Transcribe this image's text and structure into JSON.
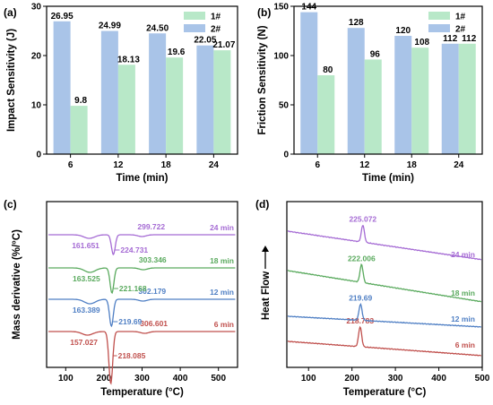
{
  "colors": {
    "series_1": "#b8e8c8",
    "series_2": "#a9c4e8"
  },
  "chart_data": [
    {
      "panel_label": "(a)",
      "type": "bar",
      "xlabel": "Time (min)",
      "ylabel": "Impact Sensitivity (J)",
      "ylim": [
        0,
        30
      ],
      "yticks": [
        0,
        10,
        20,
        30
      ],
      "categories": [
        "6",
        "12",
        "18",
        "24"
      ],
      "series": [
        {
          "name": "1#",
          "values": [
            9.8,
            18.13,
            19.6,
            21.07
          ],
          "labels": [
            "9.8",
            "18.13",
            "19.6",
            "21.07"
          ],
          "color": "#b8e8c8"
        },
        {
          "name": "2#",
          "values": [
            26.95,
            24.99,
            24.5,
            22.05
          ],
          "labels": [
            "26.95",
            "24.99",
            "24.50",
            "22.05"
          ],
          "color": "#a9c4e8"
        }
      ],
      "legend": "top-right"
    },
    {
      "panel_label": "(b)",
      "type": "bar",
      "xlabel": "Time (min)",
      "ylabel": "Friction Sensitivity (N)",
      "ylim": [
        0,
        150
      ],
      "yticks": [
        0,
        50,
        100,
        150
      ],
      "categories": [
        "6",
        "12",
        "18",
        "24"
      ],
      "series": [
        {
          "name": "1#",
          "values": [
            80,
            96,
            108,
            112
          ],
          "labels": [
            "80",
            "96",
            "108",
            "112"
          ],
          "color": "#b8e8c8"
        },
        {
          "name": "2#",
          "values": [
            144,
            128,
            120,
            112
          ],
          "labels": [
            "144",
            "128",
            "120",
            "112"
          ],
          "color": "#a9c4e8"
        }
      ],
      "legend": "top-right"
    },
    {
      "panel_label": "(c)",
      "type": "line",
      "xlabel": "Temperature (°C)",
      "ylabel": "Mass derivative (%/°C)",
      "xlim": [
        50,
        550
      ],
      "xticks": [
        100,
        200,
        300,
        400,
        500
      ],
      "series": [
        {
          "name": "6 min",
          "color": "#c0504d",
          "annotations": [
            {
              "text": "157.027",
              "x": 157.027
            },
            {
              "text": "218.085",
              "x": 218.085
            },
            {
              "text": "306.601",
              "x": 306.601
            }
          ]
        },
        {
          "name": "12 min",
          "color": "#4f7fc4",
          "annotations": [
            {
              "text": "163.389",
              "x": 163.389
            },
            {
              "text": "219.69",
              "x": 219.69
            },
            {
              "text": "302.179",
              "x": 302.179
            }
          ]
        },
        {
          "name": "18 min",
          "color": "#5aaa5e",
          "annotations": [
            {
              "text": "163.525",
              "x": 163.525
            },
            {
              "text": "221.168",
              "x": 221.168
            },
            {
              "text": "303.346",
              "x": 303.346
            }
          ]
        },
        {
          "name": "24 min",
          "color": "#a56bd4",
          "annotations": [
            {
              "text": "161.651",
              "x": 161.651
            },
            {
              "text": "224.731",
              "x": 224.731
            },
            {
              "text": "299.722",
              "x": 299.722
            }
          ]
        }
      ]
    },
    {
      "panel_label": "(d)",
      "type": "line",
      "xlabel": "Temperature (°C)",
      "ylabel": "Heat Flow",
      "xlim": [
        50,
        500
      ],
      "xticks": [
        100,
        200,
        300,
        400,
        500
      ],
      "series": [
        {
          "name": "6 min",
          "color": "#c0504d",
          "peak_label": "218.783",
          "peak_x": 218.783
        },
        {
          "name": "12 min",
          "color": "#4f7fc4",
          "peak_label": "219.69",
          "peak_x": 219.69
        },
        {
          "name": "18 min",
          "color": "#5aaa5e",
          "peak_label": "222.006",
          "peak_x": 222.006
        },
        {
          "name": "24 min",
          "color": "#a56bd4",
          "peak_label": "225.072",
          "peak_x": 225.072
        }
      ]
    }
  ]
}
